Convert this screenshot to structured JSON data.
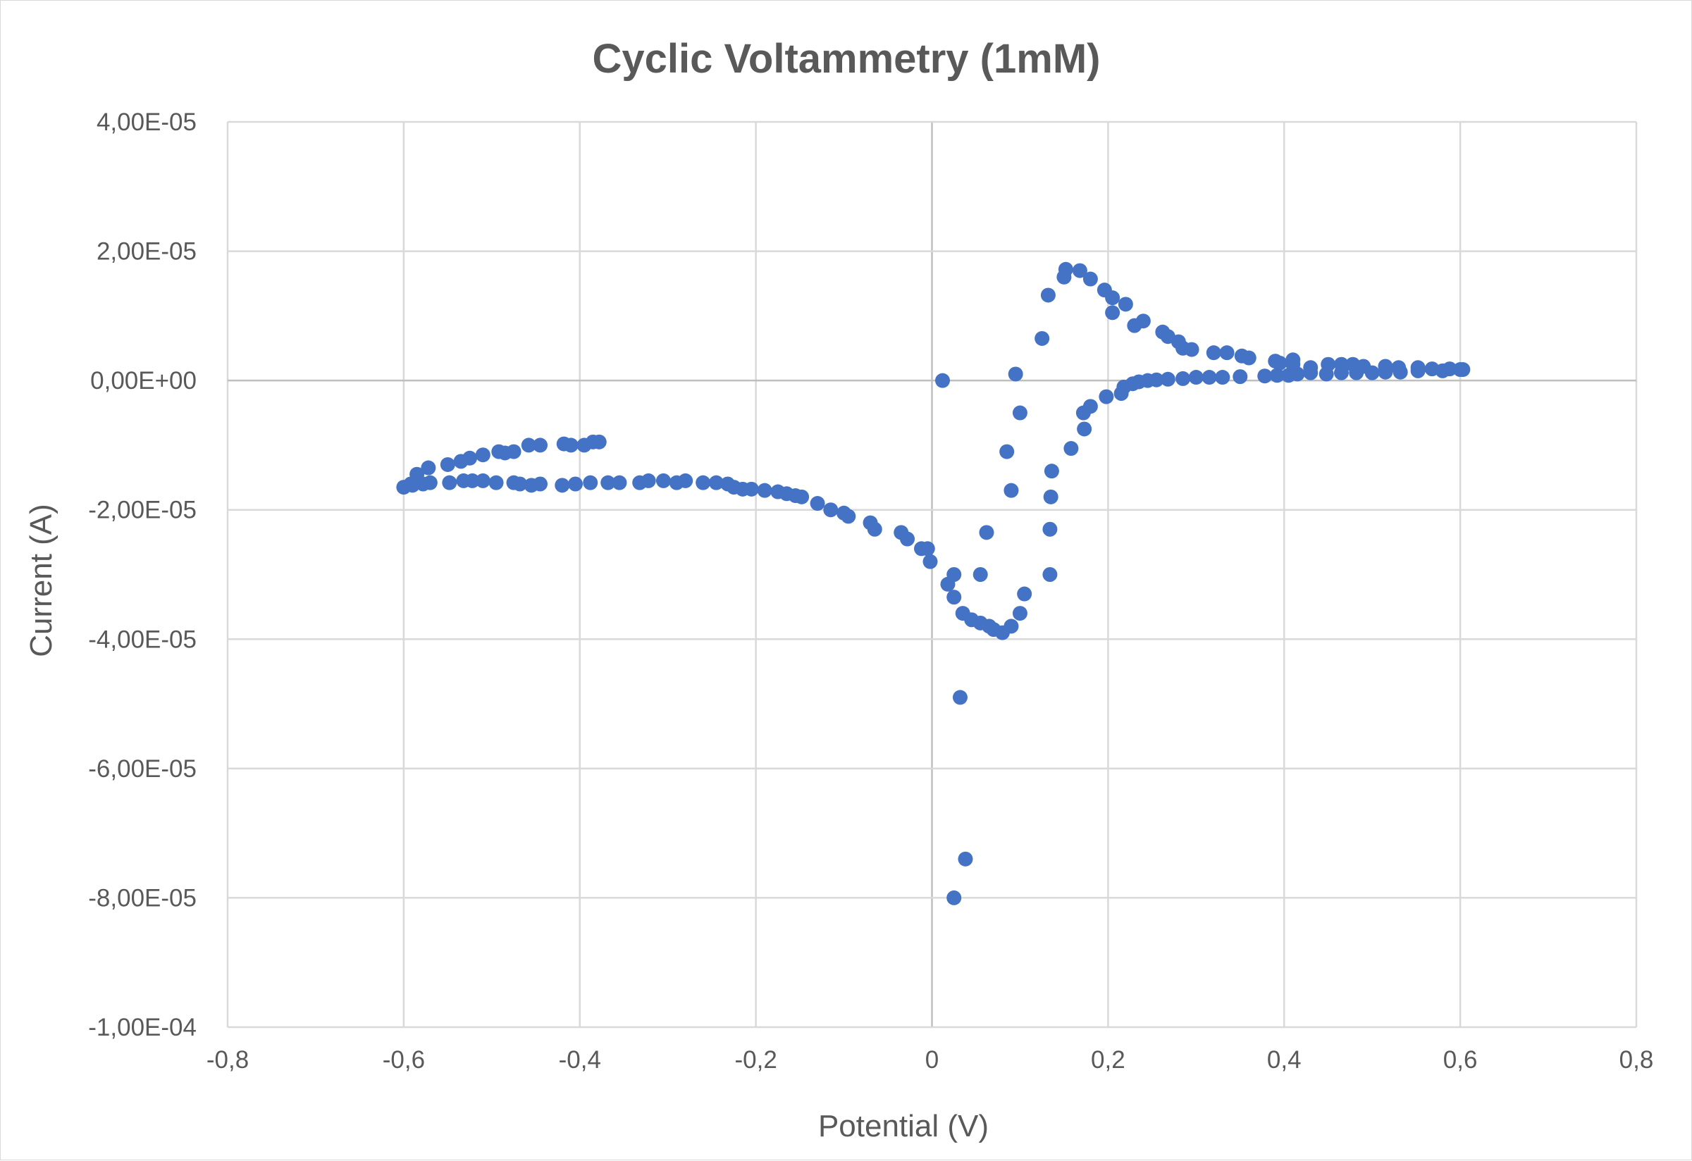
{
  "chart_data": {
    "type": "scatter",
    "title": "Cyclic Voltammetry (1mM)",
    "xlabel": "Potential (V)",
    "ylabel": "Current (A)",
    "xlim": [
      -0.8,
      0.8
    ],
    "ylim": [
      -0.0001,
      4e-05
    ],
    "x_ticks": [
      -0.8,
      -0.6,
      -0.4,
      -0.2,
      0,
      0.2,
      0.4,
      0.6,
      0.8
    ],
    "x_tick_labels": [
      "-0,8",
      "-0,6",
      "-0,4",
      "-0,2",
      "0",
      "0,2",
      "0,4",
      "0,6",
      "0,8"
    ],
    "y_ticks": [
      4e-05,
      2e-05,
      0,
      -2e-05,
      -4e-05,
      -6e-05,
      -8e-05,
      -0.0001
    ],
    "y_tick_labels": [
      "4,00E-05",
      "2,00E-05",
      "0,00E+00",
      "-2,00E-05",
      "-4,00E-05",
      "-6,00E-05",
      "-8,00E-05",
      "-1,00E-04"
    ],
    "grid": true,
    "legend": "none",
    "marker_color": "#4472c4",
    "series": [
      {
        "x": [
          0.012,
          0.095,
          0.1,
          0.085,
          0.09,
          0.062,
          0.055,
          0.105,
          0.1,
          0.09,
          0.08,
          0.07,
          0.065,
          0.055,
          0.045,
          0.035,
          0.025,
          0.018,
          0.025,
          0.032,
          0.038,
          0.025,
          0.125,
          0.132,
          0.15,
          0.152,
          0.168,
          0.18,
          0.196,
          0.205,
          0.205,
          0.22,
          0.23,
          0.24,
          0.262,
          0.268,
          0.28,
          0.285,
          0.295,
          0.32,
          0.335,
          0.352,
          0.36,
          0.39,
          0.395,
          0.41,
          0.41,
          0.43,
          0.45,
          0.465,
          0.478,
          0.49,
          0.515,
          0.53,
          0.552,
          0.568,
          0.588,
          0.6,
          0.603,
          0.58,
          0.552,
          0.532,
          0.515,
          0.5,
          0.482,
          0.465,
          0.448,
          0.43,
          0.415,
          0.405,
          0.392,
          0.378,
          0.35,
          0.33,
          0.315,
          0.3,
          0.285,
          0.268,
          0.255,
          0.245,
          0.235,
          0.228,
          0.218,
          0.215,
          0.198,
          0.18,
          0.172,
          0.173,
          0.158,
          0.136,
          0.135,
          0.134,
          0.134,
          -0.002,
          -0.005,
          -0.012,
          -0.028,
          -0.035,
          -0.065,
          -0.07,
          -0.095,
          -0.1,
          -0.115,
          -0.13,
          -0.148,
          -0.155,
          -0.165,
          -0.175,
          -0.19,
          -0.205,
          -0.215,
          -0.225,
          -0.232,
          -0.245,
          -0.26,
          -0.28,
          -0.29,
          -0.305,
          -0.322,
          -0.332,
          -0.355,
          -0.368,
          -0.388,
          -0.405,
          -0.42,
          -0.445,
          -0.455,
          -0.468,
          -0.475,
          -0.495,
          -0.51,
          -0.522,
          -0.532,
          -0.548,
          -0.57,
          -0.578,
          -0.59,
          -0.6,
          -0.592,
          -0.585,
          -0.572,
          -0.55,
          -0.535,
          -0.525,
          -0.51,
          -0.492,
          -0.485,
          -0.475,
          -0.458,
          -0.445,
          -0.418,
          -0.41,
          -0.395,
          -0.385,
          -0.378
        ],
        "y": [
          0.0,
          1e-06,
          -5e-06,
          -1.1e-05,
          -1.7e-05,
          -2.35e-05,
          -3e-05,
          -3.3e-05,
          -3.6e-05,
          -3.8e-05,
          -3.9e-05,
          -3.85e-05,
          -3.8e-05,
          -3.75e-05,
          -3.7e-05,
          -3.6e-05,
          -3.35e-05,
          -3.15e-05,
          -3e-05,
          -4.9e-05,
          -7.4e-05,
          -8e-05,
          6.5e-06,
          1.32e-05,
          1.6e-05,
          1.72e-05,
          1.7e-05,
          1.57e-05,
          1.4e-05,
          1.05e-05,
          1.28e-05,
          1.18e-05,
          8.5e-06,
          9.2e-06,
          7.5e-06,
          6.8e-06,
          6e-06,
          5e-06,
          4.8e-06,
          4.3e-06,
          4.3e-06,
          3.8e-06,
          3.5e-06,
          3e-06,
          2.7e-06,
          3.2e-06,
          2.5e-06,
          2e-06,
          2.5e-06,
          2.5e-06,
          2.5e-06,
          2.2e-06,
          2.2e-06,
          2e-06,
          2e-06,
          1.8e-06,
          1.8e-06,
          1.7e-06,
          1.7e-06,
          1.5e-06,
          1.5e-06,
          1.3e-06,
          1.3e-06,
          1.2e-06,
          1.2e-06,
          1.2e-06,
          1e-06,
          1.2e-06,
          1e-06,
          8e-07,
          8e-07,
          7e-07,
          6e-07,
          5e-07,
          5e-07,
          5e-07,
          3e-07,
          2e-07,
          1e-07,
          0.0,
          -2e-07,
          -5e-07,
          -1e-06,
          -2e-06,
          -2.5e-06,
          -4e-06,
          -5e-06,
          -7.5e-06,
          -1.05e-05,
          -1.4e-05,
          -1.8e-05,
          -2.3e-05,
          -3e-05,
          -2.8e-05,
          -2.6e-05,
          -2.6e-05,
          -2.45e-05,
          -2.35e-05,
          -2.3e-05,
          -2.2e-05,
          -2.1e-05,
          -2.05e-05,
          -2e-05,
          -1.9e-05,
          -1.8e-05,
          -1.78e-05,
          -1.75e-05,
          -1.72e-05,
          -1.7e-05,
          -1.68e-05,
          -1.68e-05,
          -1.65e-05,
          -1.6e-05,
          -1.58e-05,
          -1.58e-05,
          -1.55e-05,
          -1.58e-05,
          -1.55e-05,
          -1.55e-05,
          -1.58e-05,
          -1.58e-05,
          -1.58e-05,
          -1.58e-05,
          -1.6e-05,
          -1.62e-05,
          -1.6e-05,
          -1.62e-05,
          -1.6e-05,
          -1.58e-05,
          -1.58e-05,
          -1.55e-05,
          -1.55e-05,
          -1.55e-05,
          -1.58e-05,
          -1.58e-05,
          -1.6e-05,
          -1.62e-05,
          -1.65e-05,
          -1.6e-05,
          -1.45e-05,
          -1.35e-05,
          -1.3e-05,
          -1.25e-05,
          -1.2e-05,
          -1.15e-05,
          -1.1e-05,
          -1.12e-05,
          -1.1e-05,
          -1e-05,
          -1e-05,
          -9.8e-06,
          -1e-05,
          -1e-05,
          -9.5e-06,
          -9.5e-06
        ]
      }
    ]
  }
}
